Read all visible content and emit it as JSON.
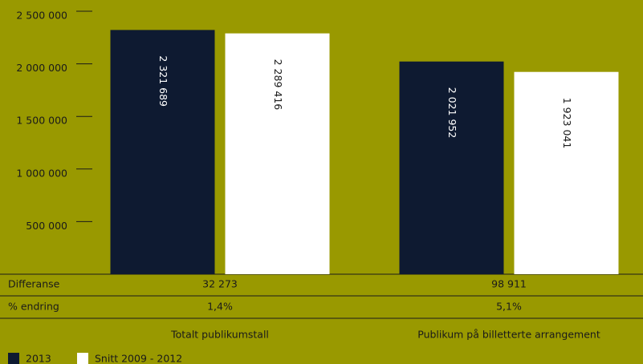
{
  "chart_data": {
    "type": "bar",
    "categories": [
      "Totalt publikumstall",
      "Publikum på billetterte arrangement"
    ],
    "series": [
      {
        "name": "2013",
        "color": "#0e1a31",
        "values": [
          2321689,
          2021952
        ],
        "value_labels": [
          "2 321 689",
          "2 021 952"
        ]
      },
      {
        "name": "Snitt 2009 - 2012",
        "color": "#ffffff",
        "values": [
          2289416,
          1923041
        ],
        "value_labels": [
          "2 289 416",
          "1 923 041"
        ]
      }
    ],
    "ylim": [
      0,
      2500000
    ],
    "yticks": [
      {
        "value": 500000,
        "label": "500 000"
      },
      {
        "value": 1000000,
        "label": "1 000 000"
      },
      {
        "value": 1500000,
        "label": "1 500 000"
      },
      {
        "value": 2000000,
        "label": "2 000 000"
      },
      {
        "value": 2500000,
        "label": "2 500 000"
      }
    ],
    "grid": false,
    "legend": "bottom-left",
    "table": {
      "rows": [
        {
          "label": "Differanse",
          "cells": [
            "32 273",
            "98 911"
          ]
        },
        {
          "label": "% endring",
          "cells": [
            "1,4%",
            "5,1%"
          ]
        }
      ]
    }
  }
}
